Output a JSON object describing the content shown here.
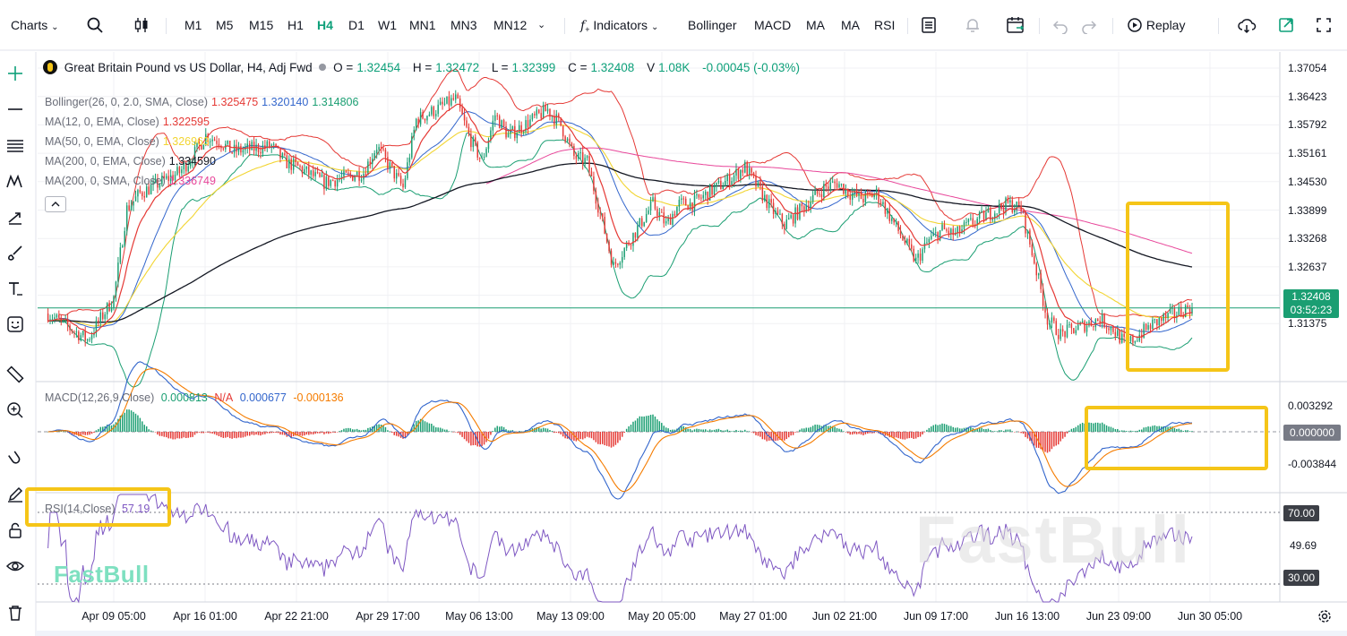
{
  "toolbar": {
    "charts_label": "Charts",
    "timeframes": [
      "M1",
      "M5",
      "M15",
      "H1",
      "H4",
      "D1",
      "W1",
      "MN1",
      "MN3",
      "MN12"
    ],
    "active_timeframe": "H4",
    "indicators_label": "Indicators",
    "indicator_shortcuts": [
      "Bollinger",
      "MACD",
      "MA",
      "MA",
      "RSI"
    ],
    "replay_label": "Replay"
  },
  "symbol": {
    "title": "Great Britain Pound vs US Dollar, H4, Adj Fwd",
    "open_label": "O =",
    "open": "1.32454",
    "high_label": "H =",
    "high": "1.32472",
    "low_label": "L =",
    "low": "1.32399",
    "close_label": "C =",
    "close": "1.32408",
    "volume_label": "V",
    "volume": "1.08K",
    "change": "-0.00045 (-0.03%)"
  },
  "indicators": [
    {
      "label": "Bollinger(26, 0, 2.0, SMA, Close)",
      "values": [
        "1.325475",
        "1.320140",
        "1.314806"
      ],
      "colors": [
        "#e53935",
        "#3366cc",
        "#1a9e72"
      ]
    },
    {
      "label": "MA(12, 0, EMA, Close)",
      "values": [
        "1.322595"
      ],
      "colors": [
        "#e53935"
      ]
    },
    {
      "label": "MA(50, 0, EMA, Close)",
      "values": [
        "1.326963"
      ],
      "colors": [
        "#f2d533"
      ]
    },
    {
      "label": "MA(200, 0, EMA, Close)",
      "values": [
        "1.334590"
      ],
      "colors": [
        "#131722"
      ]
    },
    {
      "label": "MA(200, 0, SMA, Close)",
      "values": [
        "1.336749"
      ],
      "colors": [
        "#e8479a"
      ]
    }
  ],
  "macd_legend": {
    "label": "MACD(12,26,9,Close)",
    "values": [
      "0.000813",
      "N/A",
      "0.000677",
      "-0.000136"
    ],
    "colors": [
      "#1a9e72",
      "#e53935",
      "#3366cc",
      "#f57c00"
    ]
  },
  "rsi_legend": {
    "label": "RSI(14,Close)",
    "value": "57.19"
  },
  "price_axis": [
    "1.37054",
    "1.36423",
    "1.35792",
    "1.35161",
    "1.34530",
    "1.33899",
    "1.33268",
    "1.32637",
    "1.32006",
    "1.31375"
  ],
  "current_price": {
    "value": "1.32408",
    "countdown": "03:52:23"
  },
  "macd_axis": [
    "0.003292",
    "-0.003844"
  ],
  "macd_current": "0.000000",
  "rsi_axis": {
    "upper": "70.00",
    "mid": "49.69",
    "lower": "30.00"
  },
  "date_axis": [
    "Apr 09 05:00",
    "Apr 16 01:00",
    "Apr 22 21:00",
    "Apr 29 17:00",
    "May 06 13:00",
    "May 13 09:00",
    "May 20 05:00",
    "May 27 01:00",
    "Jun 02 21:00",
    "Jun 09 17:00",
    "Jun 16 13:00",
    "Jun 23 09:00",
    "Jun 30 05:00"
  ],
  "watermark": "FastBull",
  "colors": {
    "up": "#1a9e72",
    "down": "#e53935",
    "accent": "#0ea07a",
    "highlight": "#f5c518",
    "rsi": "#7e57c2"
  },
  "chart_data": [
    {
      "type": "candlestick",
      "title": "Great Britain Pound vs US Dollar, H4, Adj Fwd",
      "x_start": "Apr 09 05:00",
      "x_end": "Jun 30 05:00",
      "ylim": [
        1.31,
        1.373
      ],
      "anchors": [
        [
          "Apr 04",
          1.323
        ],
        [
          "Apr 07",
          1.318
        ],
        [
          "Apr 09",
          1.326
        ],
        [
          "Apr 10",
          1.343
        ],
        [
          "Apr 11",
          1.346
        ],
        [
          "Apr 14",
          1.35
        ],
        [
          "Apr 15",
          1.353
        ],
        [
          "Apr 16",
          1.357
        ],
        [
          "Apr 17",
          1.356
        ],
        [
          "Apr 18",
          1.354
        ],
        [
          "Apr 21",
          1.355
        ],
        [
          "Apr 22",
          1.352
        ],
        [
          "Apr 23",
          1.351
        ],
        [
          "Apr 25",
          1.348
        ],
        [
          "Apr 28",
          1.35
        ],
        [
          "Apr 29",
          1.355
        ],
        [
          "Apr 30",
          1.351
        ],
        [
          "May 01",
          1.347
        ],
        [
          "May 02",
          1.36
        ],
        [
          "May 05",
          1.364
        ],
        [
          "May 06",
          1.357
        ],
        [
          "May 07",
          1.352
        ],
        [
          "May 08",
          1.361
        ],
        [
          "May 09",
          1.357
        ],
        [
          "May 12",
          1.362
        ],
        [
          "May 13",
          1.359
        ],
        [
          "May 14",
          1.353
        ],
        [
          "May 15",
          1.352
        ],
        [
          "May 16",
          1.342
        ],
        [
          "May 17",
          1.332
        ],
        [
          "May 19",
          1.34
        ],
        [
          "May 20",
          1.344
        ],
        [
          "May 21",
          1.34
        ],
        [
          "May 22",
          1.344
        ],
        [
          "May 23",
          1.344
        ],
        [
          "May 26",
          1.349
        ],
        [
          "May 27",
          1.351
        ],
        [
          "May 28",
          1.347
        ],
        [
          "May 29",
          1.343
        ],
        [
          "May 30",
          1.34
        ],
        [
          "Jun 02",
          1.347
        ],
        [
          "Jun 03",
          1.348
        ],
        [
          "Jun 04",
          1.346
        ],
        [
          "Jun 05",
          1.345
        ],
        [
          "Jun 06",
          1.346
        ],
        [
          "Jun 09",
          1.333
        ],
        [
          "Jun 10",
          1.337
        ],
        [
          "Jun 11",
          1.339
        ],
        [
          "Jun 12",
          1.338
        ],
        [
          "Jun 13",
          1.34
        ],
        [
          "Jun 16",
          1.344
        ],
        [
          "Jun 17",
          1.343
        ],
        [
          "Jun 18",
          1.333
        ],
        [
          "Jun 19",
          1.322
        ],
        [
          "Jun 20",
          1.319
        ],
        [
          "Jun 23",
          1.322
        ],
        [
          "Jun 24",
          1.32
        ],
        [
          "Jun 25",
          1.317
        ],
        [
          "Jun 26",
          1.319
        ],
        [
          "Jun 27",
          1.321
        ],
        [
          "Jun 30",
          1.3245
        ],
        [
          "Jun 30 05:00",
          1.32408
        ]
      ],
      "last": {
        "open": 1.32454,
        "high": 1.32472,
        "low": 1.32399,
        "close": 1.32408
      }
    },
    {
      "type": "bar+line",
      "title": "MACD(12,26,9,Close)",
      "ylim": [
        -0.0055,
        0.0045
      ],
      "last": {
        "macd": 0.000677,
        "signal": 0.000813,
        "histogram": -0.000136
      }
    },
    {
      "type": "line",
      "title": "RSI(14,Close)",
      "ylim": [
        20,
        80
      ],
      "levels": [
        70,
        30
      ],
      "last": 57.19
    }
  ]
}
